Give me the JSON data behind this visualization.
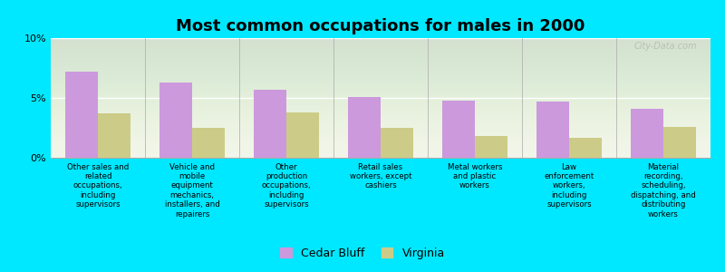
{
  "title": "Most common occupations for males in 2000",
  "categories": [
    "Other sales and\nrelated\noccupations,\nincluding\nsupervisors",
    "Vehicle and\nmobile\nequipment\nmechanics,\ninstallers, and\nrepairers",
    "Other\nproduction\noccupations,\nincluding\nsupervisors",
    "Retail sales\nworkers, except\ncashiers",
    "Metal workers\nand plastic\nworkers",
    "Law\nenforcement\nworkers,\nincluding\nsupervisors",
    "Material\nrecording,\nscheduling,\ndispatching, and\ndistributing\nworkers"
  ],
  "cedar_bluff_values": [
    7.2,
    6.3,
    5.7,
    5.1,
    4.8,
    4.7,
    4.1
  ],
  "virginia_values": [
    3.7,
    2.5,
    3.8,
    2.5,
    1.8,
    1.7,
    2.6
  ],
  "cedar_bluff_color": "#cc99dd",
  "virginia_color": "#cccc88",
  "bar_width": 0.35,
  "ylim": [
    0,
    10
  ],
  "yticks": [
    0,
    5,
    10
  ],
  "ytick_labels": [
    "0%",
    "5%",
    "10%"
  ],
  "background_color": "#00e8ff",
  "plot_bg_color": "#f2f5e8",
  "legend_labels": [
    "Cedar Bluff",
    "Virginia"
  ],
  "title_fontsize": 13,
  "label_fontsize": 6.2,
  "watermark": "City-Data.com"
}
